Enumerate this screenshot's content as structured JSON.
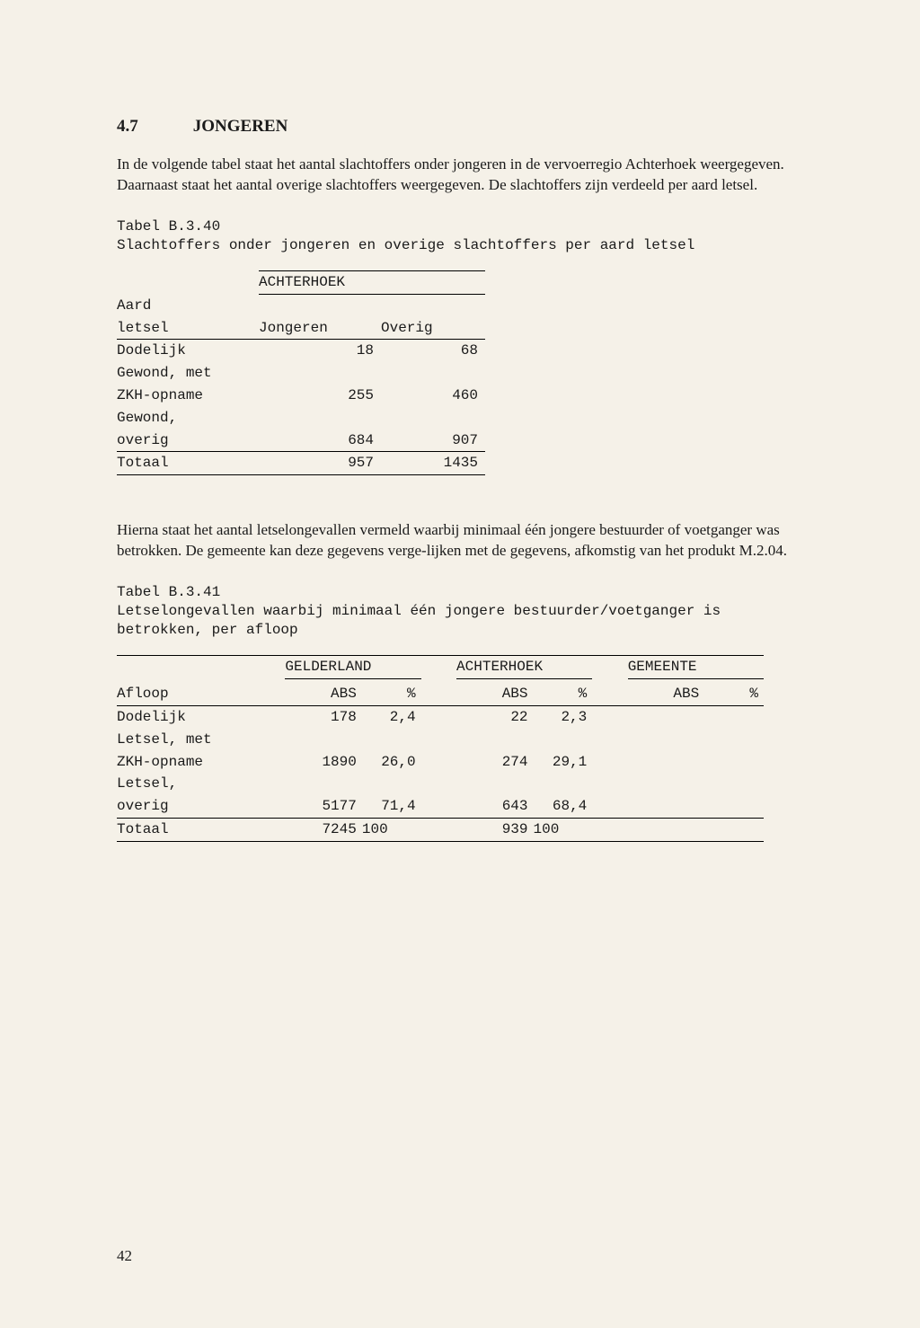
{
  "heading": {
    "num": "4.7",
    "title": "JONGEREN"
  },
  "para1": "In de volgende tabel staat het aantal slachtoffers onder jongeren in de vervoerregio Achterhoek weergegeven. Daarnaast staat het aantal overige slachtoffers weergegeven. De slachtoffers zijn verdeeld per aard letsel.",
  "table1": {
    "caption_a": "Tabel B.3.40",
    "caption_b": "Slachtoffers onder jongeren en overige slachtoffers per aard letsel",
    "region": "ACHTERHOEK",
    "rowhead_a": "Aard",
    "rowhead_b": "letsel",
    "col_a": "Jongeren",
    "col_b": "Overig",
    "rows": [
      {
        "label_a": "Dodelijk",
        "label_b": "Gewond, met",
        "j": "18",
        "o": "68"
      },
      {
        "label_a": "ZKH-opname",
        "label_b": "Gewond,",
        "j": "255",
        "o": "460"
      },
      {
        "label_a": "overig",
        "label_b": "",
        "j": "684",
        "o": "907"
      }
    ],
    "total_label": "Totaal",
    "total_j": "957",
    "total_o": "1435"
  },
  "para2": "Hierna staat het aantal letselongevallen vermeld waarbij minimaal één jongere bestuurder of voetganger was betrokken. De gemeente kan deze gegevens verge-lijken met de gegevens, afkomstig van het produkt M.2.04.",
  "table2": {
    "caption_a": "Tabel B.3.41",
    "caption_b": "Letselongevallen waarbij minimaal één jongere bestuurder/voetganger is betrokken, per afloop",
    "region1": "GELDERLAND",
    "region2": "ACHTERHOEK",
    "region3": "GEMEENTE",
    "rowhead": "Afloop",
    "abs": "ABS",
    "pct": "%",
    "rows": [
      {
        "label_a": "Dodelijk",
        "label_b": "Letsel, met",
        "g_abs": "178",
        "g_pct": "2,4",
        "a_abs": "22",
        "a_pct": "2,3",
        "m_abs": "",
        "m_pct": ""
      },
      {
        "label_a": "ZKH-opname",
        "label_b": "Letsel,",
        "g_abs": "1890",
        "g_pct": "26,0",
        "a_abs": "274",
        "a_pct": "29,1",
        "m_abs": "",
        "m_pct": ""
      },
      {
        "label_a": "overig",
        "label_b": "",
        "g_abs": "5177",
        "g_pct": "71,4",
        "a_abs": "643",
        "a_pct": "68,4",
        "m_abs": "",
        "m_pct": ""
      }
    ],
    "total_label": "Totaal",
    "total": {
      "g_abs": "7245",
      "g_pct": "100",
      "a_abs": "939",
      "a_pct": "100",
      "m_abs": "",
      "m_pct": ""
    }
  },
  "page_number": "42"
}
